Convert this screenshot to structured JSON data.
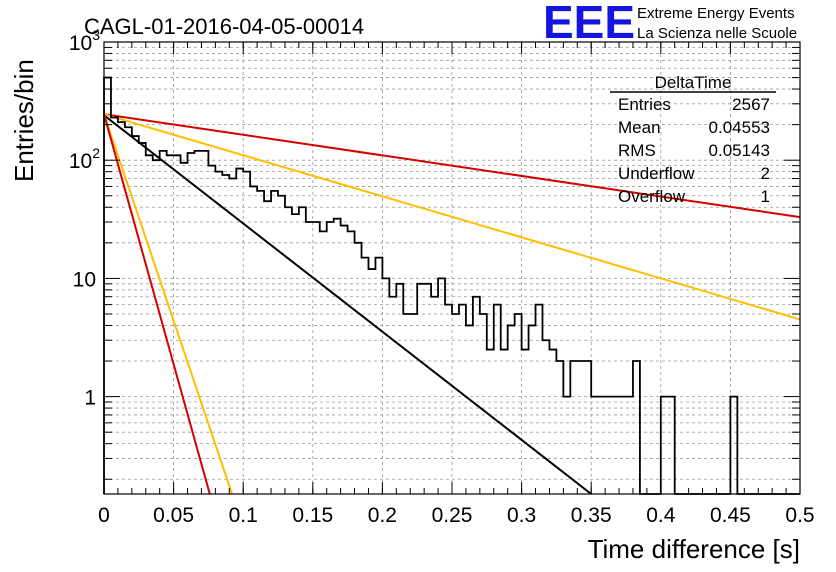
{
  "chart_data": {
    "type": "line",
    "title": "CAGL-01-2016-04-05-00014",
    "xlabel": "Time difference [s]",
    "ylabel": "Entries/bin",
    "xlim": [
      0,
      0.5
    ],
    "ylim": [
      0.15,
      1000
    ],
    "yscale": "log",
    "grid": true,
    "x_ticks": [
      "0",
      "0.05",
      "0.1",
      "0.15",
      "0.2",
      "0.25",
      "0.3",
      "0.35",
      "0.4",
      "0.45",
      "0.5"
    ],
    "y_ticks": [
      "1",
      "10",
      "10^2",
      "10^3"
    ],
    "bin_width": 0.005,
    "histogram": {
      "name": "DeltaTime",
      "counts": [
        500,
        230,
        210,
        190,
        160,
        140,
        110,
        100,
        120,
        110,
        110,
        95,
        115,
        120,
        120,
        90,
        80,
        75,
        70,
        85,
        80,
        60,
        55,
        45,
        55,
        50,
        40,
        35,
        40,
        30,
        30,
        25,
        30,
        32,
        28,
        25,
        20,
        15,
        12,
        15,
        10,
        7,
        9,
        5,
        5,
        9,
        9,
        7,
        10,
        6,
        5,
        6,
        4,
        7,
        5,
        2.5,
        6,
        2.5,
        4,
        5,
        2.5,
        4,
        6,
        3,
        2.5,
        2,
        1,
        2,
        2,
        2,
        1,
        1,
        1,
        1,
        1,
        1,
        2,
        0.1,
        0.1,
        0.1,
        1,
        1,
        0.1,
        0.1,
        0.1,
        0.1,
        0.1,
        0.1,
        0.1,
        0.1,
        1,
        0.1,
        0.1,
        0.1,
        0.1,
        0.1,
        0.1,
        0.1,
        0.1,
        0.1
      ]
    },
    "fit_lines": [
      {
        "color": "#d40000",
        "x": [
          0,
          0.5
        ],
        "y": [
          245,
          33
        ]
      },
      {
        "color": "#ffbf00",
        "x": [
          0,
          0.5
        ],
        "y": [
          245,
          4.5
        ]
      },
      {
        "color": "#000000",
        "x": [
          0,
          0.35
        ],
        "y": [
          240,
          0.15
        ]
      },
      {
        "color": "#ffbf00",
        "x": [
          0,
          0.092
        ],
        "y": [
          245,
          0.15
        ]
      },
      {
        "color": "#d40000",
        "x": [
          0,
          0.076
        ],
        "y": [
          245,
          0.15
        ]
      }
    ],
    "stats": {
      "title": "DeltaTime",
      "rows": [
        {
          "label": "Entries",
          "value": "2567"
        },
        {
          "label": "Mean",
          "value": "0.04553"
        },
        {
          "label": "RMS",
          "value": "0.05143"
        },
        {
          "label": "Underflow",
          "value": "2"
        },
        {
          "label": "Overflow",
          "value": "1"
        }
      ]
    }
  },
  "logo": {
    "letters": "EEE",
    "line1": "Extreme Energy Events",
    "line2": "La Scienza nelle Scuole",
    "color": "#1515e0"
  }
}
